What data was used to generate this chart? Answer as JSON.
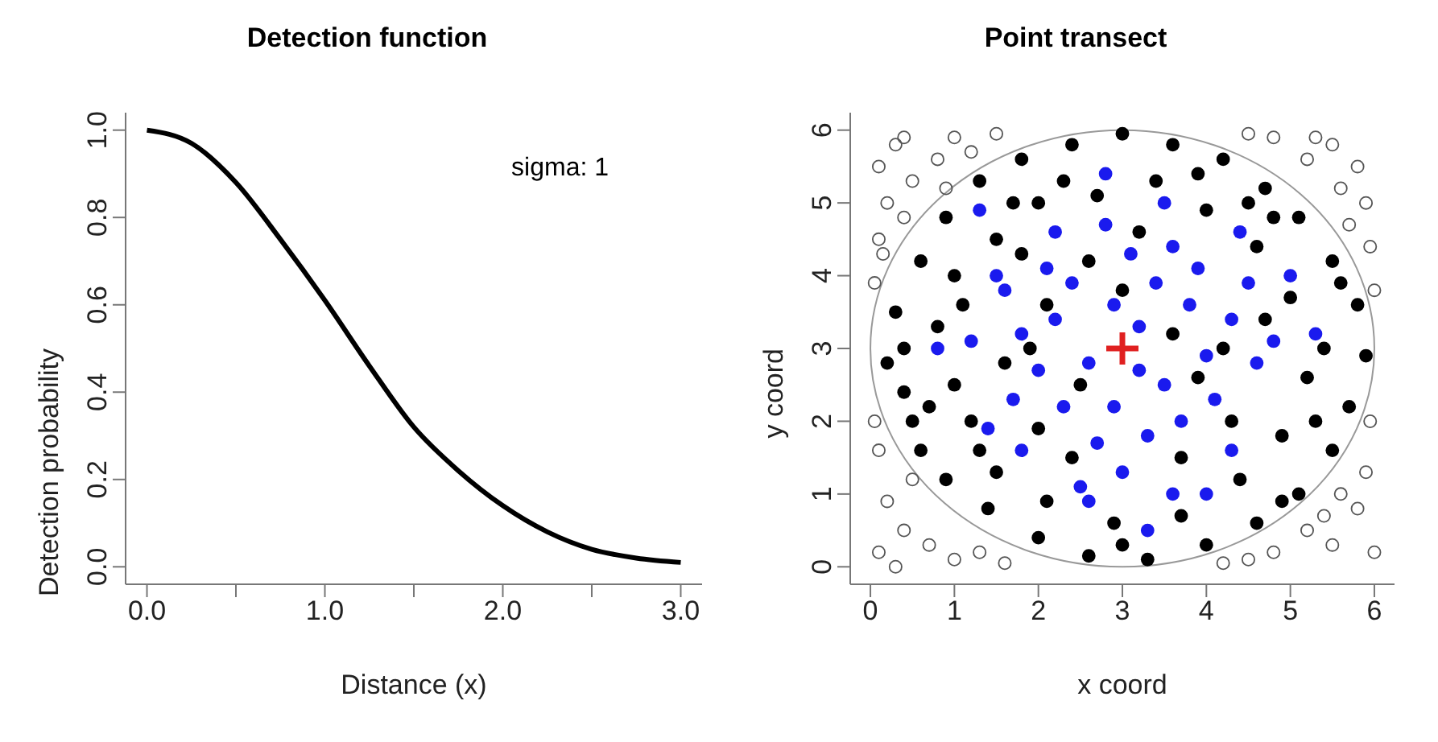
{
  "chart_data": [
    {
      "type": "line",
      "title": "Detection function",
      "xlabel": "Distance (x)",
      "ylabel": "Detection probability",
      "annotations": [
        "sigma: 1"
      ],
      "x": [
        0,
        0.25,
        0.5,
        0.75,
        1,
        1.25,
        1.5,
        1.75,
        2,
        2.25,
        2.5,
        2.75,
        3
      ],
      "series": [
        {
          "color": "#000000",
          "values": [
            1,
            0.97,
            0.88,
            0.75,
            0.61,
            0.46,
            0.32,
            0.22,
            0.14,
            0.08,
            0.04,
            0.02,
            0.01
          ]
        }
      ],
      "xlim": [
        -0.12,
        3.12
      ],
      "xticks": [
        {
          "value": 0,
          "label": "0.0"
        },
        {
          "value": 0.5,
          "label": null
        },
        {
          "value": 1,
          "label": "1.0"
        },
        {
          "value": 1.5,
          "label": null
        },
        {
          "value": 2,
          "label": "2.0"
        },
        {
          "value": 2.5,
          "label": null
        },
        {
          "value": 3,
          "label": "3.0"
        }
      ],
      "ylim": [
        -0.04,
        1.04
      ],
      "yticks": [
        {
          "value": 0,
          "label": "0.0"
        },
        {
          "value": 0.2,
          "label": "0.2"
        },
        {
          "value": 0.4,
          "label": "0.4"
        },
        {
          "value": 0.6,
          "label": "0.6"
        },
        {
          "value": 0.8,
          "label": "0.8"
        },
        {
          "value": 1,
          "label": "1.0"
        }
      ],
      "grid": false,
      "marker": "none",
      "line_style": "solid"
    },
    {
      "type": "scatter",
      "title": "Point transect",
      "xlabel": "x coord",
      "ylabel": "y coord",
      "series": [
        {
          "color": "#555555",
          "marker": "circle-open",
          "x": [
            0.1,
            0.3,
            0.5,
            0.2,
            0.8,
            1.0,
            0.4,
            0.1,
            1.2,
            1.5,
            0.4,
            0.9,
            0.15,
            0.05,
            5.5,
            5.8,
            5.2,
            5.9,
            4.8,
            5.6,
            5.95,
            5.3,
            4.5,
            5.7,
            6.0,
            0.1,
            0.4,
            0.2,
            0.7,
            1.0,
            0.5,
            0.1,
            1.3,
            0.3,
            0.05,
            1.6,
            5.5,
            5.8,
            5.2,
            5.9,
            4.8,
            5.6,
            6.0,
            4.5,
            5.95,
            5.4,
            4.2
          ],
          "values": [
            5.5,
            5.8,
            5.3,
            5.0,
            5.6,
            5.9,
            4.8,
            4.5,
            5.7,
            5.95,
            5.9,
            5.2,
            4.3,
            3.9,
            5.8,
            5.5,
            5.6,
            5.0,
            5.9,
            5.2,
            4.4,
            5.9,
            5.95,
            4.7,
            3.8,
            0.2,
            0.5,
            0.9,
            0.3,
            0.1,
            1.2,
            1.6,
            0.2,
            0.0,
            2.0,
            0.05,
            0.3,
            0.8,
            0.5,
            1.3,
            0.2,
            1.0,
            0.2,
            0.1,
            2.0,
            0.7,
            0.05
          ]
        },
        {
          "color": "#000000",
          "x": [
            0.2,
            0.3,
            0.5,
            0.6,
            0.9,
            1.3,
            1.8,
            2.4,
            3.0,
            3.6,
            4.2,
            4.7,
            5.1,
            5.5,
            5.8,
            5.9,
            5.7,
            5.5,
            5.1,
            4.6,
            4.0,
            3.3,
            2.6,
            2.0,
            1.4,
            0.9,
            0.6,
            0.4,
            1.0,
            1.1,
            1.5,
            2.0,
            2.7,
            3.4,
            4.0,
            4.6,
            5.0,
            5.2,
            4.9,
            4.4,
            3.7,
            2.9,
            2.1,
            1.5,
            1.2,
            0.8,
            1.9,
            2.5,
            3.6,
            3.0,
            4.3,
            2.0,
            1.6,
            4.7,
            3.9,
            2.3,
            1.0,
            0.4,
            5.4,
            5.3,
            4.8,
            1.8,
            4.5,
            3.2,
            2.6,
            4.2,
            3.7,
            2.4,
            1.3,
            5.6,
            0.7,
            1.7,
            3.0,
            4.9,
            2.1,
            3.9
          ],
          "values": [
            2.8,
            3.5,
            2.0,
            4.2,
            4.8,
            5.3,
            5.6,
            5.8,
            5.95,
            5.8,
            5.6,
            5.2,
            4.8,
            4.2,
            3.6,
            2.9,
            2.2,
            1.6,
            1.0,
            0.6,
            0.3,
            0.1,
            0.15,
            0.4,
            0.8,
            1.2,
            1.6,
            2.4,
            2.5,
            3.6,
            4.5,
            5.0,
            5.1,
            5.3,
            4.9,
            4.4,
            3.7,
            2.6,
            1.8,
            1.2,
            0.7,
            0.6,
            0.9,
            1.3,
            2.0,
            3.3,
            3.0,
            2.5,
            3.2,
            3.8,
            2.0,
            1.9,
            2.8,
            3.4,
            5.4,
            5.3,
            4.0,
            3.0,
            3.0,
            2.0,
            4.8,
            4.3,
            5.0,
            4.6,
            4.2,
            3.0,
            1.5,
            1.5,
            1.6,
            3.9,
            2.2,
            5.0,
            0.3,
            0.9,
            3.6,
            2.6
          ]
        },
        {
          "color": "#1a1aee",
          "x": [
            3.2,
            2.6,
            3.5,
            2.2,
            3.8,
            2.9,
            3.4,
            2.0,
            4.0,
            3.1,
            2.4,
            3.7,
            1.8,
            4.3,
            2.7,
            3.3,
            4.1,
            2.3,
            3.6,
            2.8,
            1.7,
            4.5,
            2.1,
            3.9,
            1.6,
            4.6,
            3.0,
            2.5,
            3.6,
            1.4,
            4.4,
            2.2,
            1.2,
            4.8,
            2.8,
            1.3,
            3.5,
            4.3,
            1.8,
            3.3,
            2.6,
            5.0,
            0.8,
            5.3,
            1.5,
            4.0,
            3.2,
            2.9
          ],
          "values": [
            3.3,
            2.8,
            2.5,
            3.4,
            3.6,
            2.2,
            3.9,
            2.7,
            2.9,
            4.3,
            3.9,
            2.0,
            3.2,
            3.4,
            1.7,
            1.8,
            2.3,
            2.2,
            4.4,
            4.7,
            2.3,
            3.9,
            4.1,
            4.1,
            3.8,
            2.8,
            1.3,
            1.1,
            1.0,
            1.9,
            4.6,
            4.6,
            3.1,
            3.1,
            5.4,
            4.9,
            5.0,
            1.6,
            1.6,
            0.5,
            0.9,
            4.0,
            3.0,
            3.2,
            4.0,
            1.0,
            2.7,
            3.6
          ]
        },
        {
          "color": "#e02020",
          "marker": "cross",
          "x": [
            3
          ],
          "values": [
            3
          ]
        }
      ],
      "xlim": [
        -0.24,
        6.24
      ],
      "xticks": [
        0,
        1,
        2,
        3,
        4,
        5,
        6
      ],
      "ylim": [
        -0.24,
        6.24
      ],
      "yticks": [
        0,
        1,
        2,
        3,
        4,
        5,
        6
      ],
      "grid": false,
      "marker": "circle"
    }
  ]
}
